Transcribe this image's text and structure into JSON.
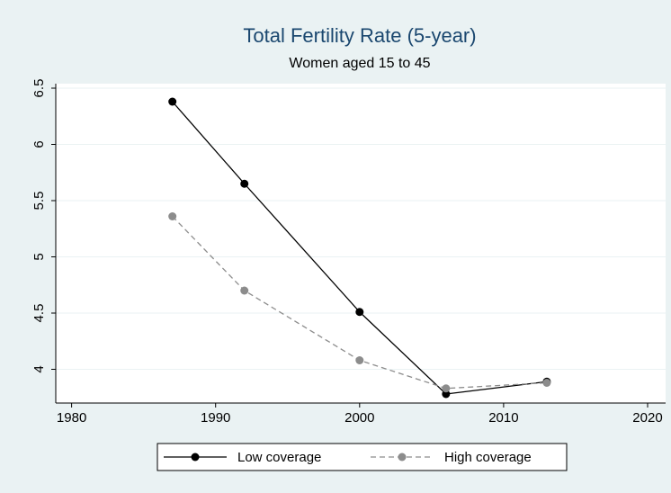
{
  "chart_data": {
    "type": "line",
    "title": "Total Fertility Rate (5-year)",
    "subtitle": "Women aged 15 to 45",
    "x": [
      1987,
      1992,
      2000,
      2006,
      2013
    ],
    "series": [
      {
        "name": "Low coverage",
        "color": "#000000",
        "dashed": false,
        "values": [
          6.38,
          5.65,
          4.51,
          3.78,
          3.89
        ]
      },
      {
        "name": "High coverage",
        "color": "#8c8c8c",
        "dashed": true,
        "values": [
          5.36,
          4.7,
          4.08,
          3.83,
          3.88
        ]
      }
    ],
    "xlim": [
      1978.9,
      2021.25
    ],
    "xticks": [
      1980,
      1990,
      2000,
      2010,
      2020
    ],
    "ylim": [
      3.7,
      6.54
    ],
    "yticks": [
      4,
      4.5,
      5,
      5.5,
      6,
      6.5
    ],
    "grid": true,
    "legend": "bottom"
  }
}
